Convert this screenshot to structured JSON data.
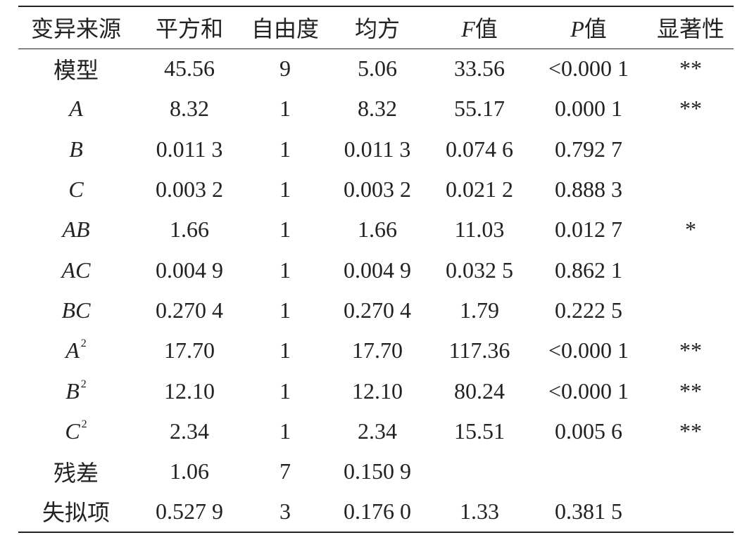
{
  "table": {
    "headers": {
      "source": "变异来源",
      "ss": "平方和",
      "df": "自由度",
      "ms": "均方",
      "f_sym": "F",
      "f_word": "值",
      "p_sym": "P",
      "p_word": "值",
      "sig": "显著性"
    },
    "rows": [
      {
        "source": "模型",
        "ss": "45.56",
        "df": "9",
        "ms": "5.06",
        "f": "33.56",
        "p": "<0.000 1",
        "sig": "**"
      },
      {
        "source": "A",
        "ss": "8.32",
        "df": "1",
        "ms": "8.32",
        "f": "55.17",
        "p": "0.000 1",
        "sig": "**"
      },
      {
        "source": "B",
        "ss": "0.011 3",
        "df": "1",
        "ms": "0.011 3",
        "f": "0.074 6",
        "p": "0.792 7",
        "sig": ""
      },
      {
        "source": "C",
        "ss": "0.003 2",
        "df": "1",
        "ms": "0.003 2",
        "f": "0.021 2",
        "p": "0.888 3",
        "sig": ""
      },
      {
        "source": "AB",
        "ss": "1.66",
        "df": "1",
        "ms": "1.66",
        "f": "11.03",
        "p": "0.012 7",
        "sig": "*"
      },
      {
        "source": "AC",
        "ss": "0.004 9",
        "df": "1",
        "ms": "0.004 9",
        "f": "0.032 5",
        "p": "0.862 1",
        "sig": ""
      },
      {
        "source": "BC",
        "ss": "0.270 4",
        "df": "1",
        "ms": "0.270 4",
        "f": "1.79",
        "p": "0.222 5",
        "sig": ""
      },
      {
        "source": "A",
        "sup": "2",
        "ss": "17.70",
        "df": "1",
        "ms": "17.70",
        "f": "117.36",
        "p": "<0.000 1",
        "sig": "**"
      },
      {
        "source": "B",
        "sup": "2",
        "ss": "12.10",
        "df": "1",
        "ms": "12.10",
        "f": "80.24",
        "p": "<0.000 1",
        "sig": "**"
      },
      {
        "source": "C",
        "sup": "2",
        "ss": "2.34",
        "df": "1",
        "ms": "2.34",
        "f": "15.51",
        "p": "0.005 6",
        "sig": "**"
      },
      {
        "source": "残差",
        "ss": "1.06",
        "df": "7",
        "ms": "0.150 9",
        "f": "",
        "p": "",
        "sig": ""
      },
      {
        "source": "失拟项",
        "ss": "0.527 9",
        "df": "3",
        "ms": "0.176 0",
        "f": "1.33",
        "p": "0.381 5",
        "sig": ""
      }
    ]
  }
}
